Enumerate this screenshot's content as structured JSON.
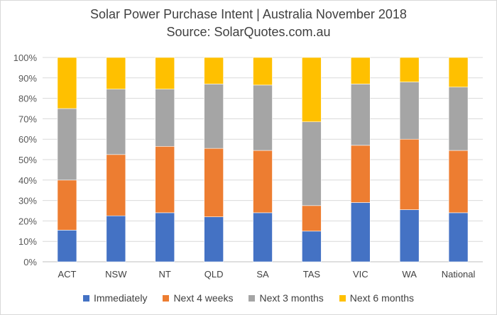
{
  "chart_data": {
    "type": "bar",
    "stacked": true,
    "title": "Solar Power Purchase Intent | Australia November 2018",
    "subtitle": "Source: SolarQuotes.com.au",
    "categories": [
      "ACT",
      "NSW",
      "NT",
      "QLD",
      "SA",
      "TAS",
      "VIC",
      "WA",
      "National"
    ],
    "ylim": [
      0,
      100
    ],
    "ytick_step": 10,
    "ytick_suffix": "%",
    "grid": true,
    "legend_position": "bottom",
    "series": [
      {
        "name": "Immediately",
        "color": "#4472c4",
        "values": [
          15.5,
          22.5,
          24,
          22,
          24,
          15,
          29,
          25.5,
          24
        ]
      },
      {
        "name": "Next 4 weeks",
        "color": "#ed7d31",
        "values": [
          24.5,
          30,
          32.5,
          33.5,
          30.5,
          12.5,
          28,
          34.5,
          30.5
        ]
      },
      {
        "name": "Next 3 months",
        "color": "#a5a5a5",
        "values": [
          35,
          32,
          28,
          31.5,
          32,
          41,
          30,
          28,
          31
        ]
      },
      {
        "name": "Next 6 months",
        "color": "#ffc000",
        "values": [
          25,
          15.5,
          15.5,
          13,
          13.5,
          31.5,
          13,
          12,
          14.5
        ]
      }
    ]
  }
}
